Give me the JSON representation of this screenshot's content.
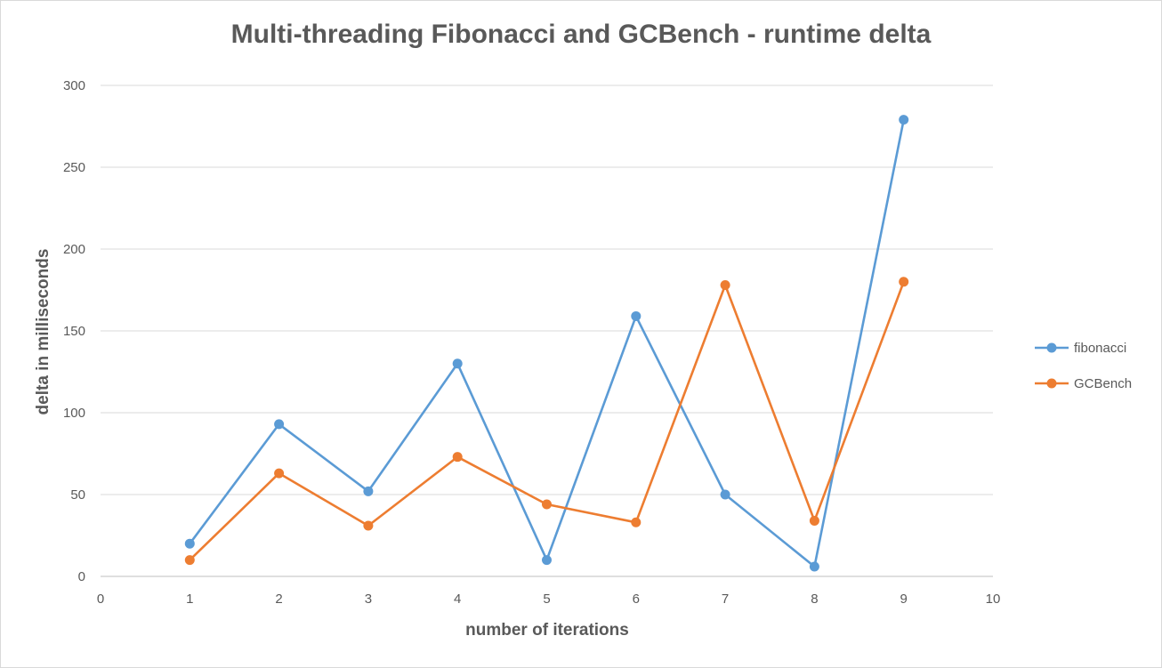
{
  "chart_data": {
    "type": "scatter",
    "title": "Multi-threading Fibonacci and GCBench - runtime delta",
    "xlabel": "number of iterations",
    "ylabel": "delta in milliseconds",
    "xlim": [
      0,
      10
    ],
    "ylim": [
      0,
      300
    ],
    "xticks": [
      0,
      1,
      2,
      3,
      4,
      5,
      6,
      7,
      8,
      9,
      10
    ],
    "yticks": [
      0,
      50,
      100,
      150,
      200,
      250,
      300
    ],
    "grid": "horizontal",
    "legend_position": "right",
    "x": [
      1,
      2,
      3,
      4,
      5,
      6,
      7,
      8,
      9
    ],
    "series": [
      {
        "name": "fibonacci",
        "color": "#5b9bd5",
        "values": [
          20,
          93,
          52,
          130,
          10,
          159,
          50,
          6,
          279
        ]
      },
      {
        "name": "GCBench",
        "color": "#ed7d31",
        "values": [
          10,
          63,
          31,
          73,
          44,
          33,
          178,
          34,
          180
        ]
      }
    ]
  }
}
